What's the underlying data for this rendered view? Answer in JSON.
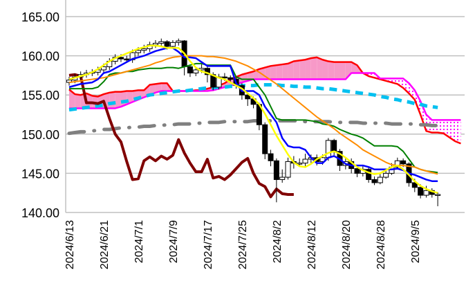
{
  "chart_data": {
    "type": "candlestick-ichimoku",
    "ylim": [
      140,
      165
    ],
    "grid": true,
    "y_ticks": [
      "165.00",
      "160.00",
      "155.00",
      "150.00",
      "145.00",
      "140.00"
    ],
    "y_tick_values": [
      165,
      160,
      155,
      150,
      145,
      140
    ],
    "x_tick_labels": [
      "2024/6/13",
      "2024/6/21",
      "2024/7/1",
      "2024/7/9",
      "2024/7/17",
      "2024/7/25",
      "2024/8/2",
      "2024/8/12",
      "2024/8/20",
      "2024/8/28",
      "2024/9/5"
    ],
    "x_tick_every_n_days": 6,
    "colors": {
      "up_candle": "#ffffff",
      "down_candle": "#000000",
      "yellow": "#ffff00",
      "blue": "#0000ff",
      "green": "#008000",
      "orange": "#ff8c00",
      "red": "#ff0000",
      "magenta": "#ff00ff",
      "cyan": "#00c0f0",
      "grey": "#808080",
      "darkred": "#800000",
      "cloud_up": "#f799c8",
      "cloud_down": "#ff00ff"
    },
    "candles": [
      [
        156.6,
        157.3,
        156.2,
        156.9
      ],
      [
        156.9,
        157.7,
        156.5,
        157.3
      ],
      [
        157.3,
        158.0,
        156.9,
        157.6
      ],
      [
        157.6,
        158.2,
        157.2,
        157.8
      ],
      [
        157.8,
        158.3,
        157.4,
        157.9
      ],
      [
        157.9,
        158.6,
        157.5,
        158.2
      ],
      [
        158.2,
        159.0,
        157.8,
        158.6
      ],
      [
        158.6,
        159.7,
        158.2,
        159.3
      ],
      [
        159.3,
        160.2,
        158.9,
        159.8
      ],
      [
        159.8,
        160.2,
        159.2,
        159.6
      ],
      [
        159.6,
        160.0,
        159.1,
        159.5
      ],
      [
        159.5,
        160.8,
        159.1,
        160.4
      ],
      [
        160.4,
        161.1,
        160.0,
        160.7
      ],
      [
        160.7,
        161.4,
        160.3,
        160.9
      ],
      [
        160.9,
        161.8,
        160.5,
        161.4
      ],
      [
        161.4,
        162.0,
        161.0,
        161.6
      ],
      [
        161.6,
        162.2,
        161.2,
        161.8
      ],
      [
        161.8,
        162.0,
        160.8,
        161.2
      ],
      [
        161.2,
        162.0,
        160.9,
        161.7
      ],
      [
        161.7,
        162.2,
        161.3,
        161.9
      ],
      [
        161.9,
        162.0,
        157.5,
        158.6
      ],
      [
        158.6,
        158.9,
        157.3,
        157.8
      ],
      [
        157.8,
        158.6,
        157.4,
        158.2
      ],
      [
        158.2,
        158.9,
        157.8,
        158.4
      ],
      [
        158.4,
        158.8,
        156.6,
        157.6
      ],
      [
        157.6,
        157.9,
        155.6,
        156.0
      ],
      [
        156.0,
        157.7,
        155.7,
        157.3
      ],
      [
        157.3,
        157.8,
        156.8,
        157.2
      ],
      [
        157.2,
        157.5,
        156.5,
        157.0
      ],
      [
        157.0,
        157.3,
        155.8,
        156.2
      ],
      [
        156.2,
        156.5,
        154.4,
        155.0
      ],
      [
        155.0,
        155.3,
        153.6,
        154.5
      ],
      [
        154.5,
        154.8,
        153.3,
        153.8
      ],
      [
        153.8,
        154.0,
        150.5,
        151.2
      ],
      [
        151.2,
        151.5,
        146.8,
        147.5
      ],
      [
        147.5,
        148.0,
        145.9,
        146.6
      ],
      [
        146.6,
        146.9,
        141.3,
        144.2
      ],
      [
        144.2,
        145.5,
        143.8,
        144.5
      ],
      [
        144.5,
        147.0,
        144.2,
        146.5
      ],
      [
        146.5,
        147.2,
        145.6,
        146.3
      ],
      [
        146.3,
        146.9,
        145.8,
        146.3
      ],
      [
        146.3,
        147.5,
        145.9,
        146.8
      ],
      [
        146.8,
        147.4,
        146.3,
        147.0
      ],
      [
        147.0,
        147.4,
        146.0,
        146.5
      ],
      [
        146.5,
        147.4,
        146.1,
        147.0
      ],
      [
        147.0,
        149.5,
        146.6,
        149.2
      ],
      [
        149.2,
        149.4,
        147.3,
        147.8
      ],
      [
        147.8,
        148.1,
        145.3,
        146.0
      ],
      [
        146.0,
        147.0,
        145.5,
        146.5
      ],
      [
        146.5,
        146.9,
        145.0,
        145.6
      ],
      [
        145.6,
        146.0,
        144.5,
        145.0
      ],
      [
        145.0,
        145.9,
        144.6,
        145.5
      ],
      [
        145.5,
        145.8,
        143.8,
        144.2
      ],
      [
        144.2,
        144.6,
        143.5,
        143.8
      ],
      [
        143.8,
        144.9,
        143.6,
        144.5
      ],
      [
        144.5,
        145.6,
        144.3,
        145.0
      ],
      [
        145.0,
        146.3,
        144.8,
        145.8
      ],
      [
        145.8,
        147.0,
        145.5,
        146.6
      ],
      [
        146.6,
        146.9,
        145.8,
        146.2
      ],
      [
        146.2,
        146.4,
        143.3,
        143.8
      ],
      [
        143.8,
        144.3,
        142.6,
        143.2
      ],
      [
        143.2,
        143.6,
        141.8,
        142.2
      ],
      [
        142.2,
        143.4,
        141.9,
        142.8
      ],
      [
        142.8,
        143.1,
        141.9,
        142.3
      ],
      [
        142.3,
        142.6,
        140.8,
        142.3
      ]
    ],
    "lines": {
      "yellow": [
        157.0,
        157.2,
        157.4,
        157.6,
        157.9,
        158.3,
        158.8,
        159.3,
        159.7,
        160.0,
        160.3,
        160.6,
        160.9,
        161.1,
        161.3,
        161.3,
        161.2,
        161.0,
        161.0,
        161.0,
        160.3,
        159.3,
        158.5,
        158.0,
        157.8,
        157.5,
        157.2,
        157.0,
        156.6,
        156.2,
        155.8,
        155.2,
        154.6,
        153.8,
        152.6,
        151.2,
        149.8,
        148.6,
        147.4,
        146.4,
        145.9,
        145.8,
        146.2,
        146.8,
        147.2,
        147.6,
        147.8,
        147.5,
        147.0,
        146.4,
        145.8,
        145.4,
        145.1,
        144.9,
        145.0,
        145.4,
        145.8,
        146.0,
        145.5,
        144.8,
        144.0,
        143.4,
        143.0,
        142.7,
        142.5
      ],
      "blue": [
        156.0,
        156.2,
        156.4,
        156.5,
        156.6,
        157.0,
        157.8,
        158.0,
        158.4,
        158.8,
        159.2,
        159.6,
        159.8,
        160.0,
        160.3,
        160.6,
        160.8,
        161.0,
        161.0,
        160.5,
        159.8,
        159.8,
        159.7,
        159.2,
        158.7,
        158.7,
        158.7,
        158.7,
        158.7,
        156.5,
        155.5,
        155.5,
        155.5,
        155.0,
        153.5,
        152.5,
        151.5,
        149.5,
        148.5,
        148.3,
        148.3,
        148.0,
        147.0,
        146.3,
        146.3,
        147.0,
        147.2,
        146.8,
        146.2,
        146.0,
        146.0,
        146.0,
        145.8,
        145.5,
        145.5,
        145.5,
        145.5,
        145.6,
        145.4,
        145.0,
        144.8,
        144.5,
        144.2,
        144.0,
        144.0
      ],
      "green": [
        155.8,
        155.8,
        155.8,
        155.8,
        155.8,
        156.0,
        156.7,
        157.6,
        157.8,
        157.8,
        158.0,
        158.0,
        158.2,
        158.3,
        158.4,
        158.4,
        158.4,
        158.5,
        158.5,
        158.4,
        158.6,
        158.8,
        159.0,
        159.0,
        158.8,
        158.8,
        158.8,
        158.8,
        158.8,
        157.3,
        157.0,
        157.0,
        157.0,
        156.0,
        155.0,
        153.5,
        152.0,
        151.8,
        151.8,
        151.8,
        151.8,
        151.8,
        151.7,
        151.6,
        151.3,
        151.2,
        151.0,
        150.6,
        150.3,
        150.0,
        149.8,
        149.5,
        149.0,
        148.5,
        148.5,
        148.5,
        148.5,
        148.4,
        147.8,
        146.8,
        145.8,
        145.5,
        145.3,
        145.2,
        145.1
      ],
      "orange": [
        156.6,
        156.7,
        156.8,
        156.9,
        157.0,
        157.1,
        157.2,
        157.4,
        157.6,
        157.8,
        158.0,
        158.2,
        158.4,
        158.6,
        158.8,
        159.1,
        159.3,
        159.6,
        159.8,
        159.9,
        160.0,
        160.0,
        160.0,
        160.0,
        159.9,
        159.9,
        159.8,
        159.7,
        159.5,
        159.3,
        159.0,
        158.7,
        158.3,
        157.9,
        157.4,
        156.9,
        156.4,
        155.8,
        155.2,
        154.6,
        154.0,
        153.4,
        152.8,
        152.2,
        151.7,
        151.2,
        150.7,
        150.1,
        149.6,
        149.1,
        148.6,
        148.0,
        147.6,
        147.2,
        146.8,
        146.4,
        146.1,
        146.0,
        146.0,
        145.9,
        145.8,
        145.5,
        145.3,
        145.1,
        144.9
      ],
      "red": [
        155.7,
        155.1,
        155.0,
        155.2,
        154.9,
        154.8,
        155.1,
        155.3,
        155.4,
        155.4,
        155.5,
        155.5,
        155.6,
        155.6,
        156.3,
        156.4,
        156.5,
        156.5,
        155.5,
        155.5,
        155.5,
        155.5,
        155.6,
        155.6,
        155.8,
        156.0,
        156.2,
        156.5,
        157.0,
        157.3,
        157.6,
        157.8,
        158.0,
        158.3,
        158.5,
        158.7,
        158.8,
        158.9,
        159.0,
        159.3,
        159.4,
        159.5,
        159.7,
        159.8,
        159.5,
        159.3,
        159.2,
        159.2,
        159.2,
        159.2,
        158.8,
        157.8,
        157.4,
        157.2,
        157.0,
        156.8,
        156.6,
        156.4,
        155.9,
        155.2,
        154.4,
        152.5,
        150.4,
        150.2,
        150.2,
        150.1,
        149.6,
        149.1,
        148.8
      ],
      "magenta": [
        153.3,
        153.3,
        153.3,
        153.3,
        153.3,
        153.3,
        153.3,
        153.3,
        153.3,
        153.5,
        153.8,
        154.1,
        154.4,
        154.7,
        155.0,
        155.3,
        155.5,
        155.5,
        155.5,
        155.5,
        155.5,
        155.5,
        155.5,
        155.5,
        155.5,
        155.6,
        155.8,
        156.0,
        156.2,
        156.4,
        156.6,
        156.8,
        157.0,
        157.0,
        157.0,
        157.0,
        157.0,
        157.0,
        157.0,
        157.0,
        157.0,
        157.0,
        157.0,
        157.0,
        157.0,
        157.0,
        157.0,
        157.0,
        157.0,
        157.8,
        157.8,
        157.8,
        157.8,
        157.8,
        157.1,
        157.1,
        157.1,
        157.1,
        157.1,
        156.5,
        155.6,
        154.2,
        152.5,
        151.8,
        151.8,
        151.8,
        151.8,
        151.8,
        151.8
      ],
      "cyan": [
        153.1,
        153.2,
        153.3,
        153.4,
        153.5,
        153.6,
        153.7,
        153.9,
        154.0,
        154.1,
        154.2,
        154.4,
        154.6,
        154.8,
        155.0,
        155.1,
        155.2,
        155.3,
        155.4,
        155.5,
        155.5,
        155.6,
        155.7,
        155.8,
        155.9,
        155.9,
        156.0,
        156.0,
        156.1,
        156.1,
        156.2,
        156.2,
        156.2,
        156.3,
        156.3,
        156.3,
        156.3,
        156.2,
        156.2,
        156.1,
        156.1,
        156.0,
        156.0,
        155.9,
        155.8,
        155.8,
        155.7,
        155.6,
        155.5,
        155.4,
        155.3,
        155.2,
        155.1,
        155.0,
        154.8,
        154.7,
        154.5,
        154.4,
        154.2,
        154.1,
        153.9,
        153.8,
        153.6,
        153.5,
        153.4
      ],
      "grey": [
        150.1,
        150.2,
        150.3,
        150.3,
        150.4,
        150.5,
        150.6,
        150.6,
        150.7,
        150.8,
        150.8,
        150.9,
        150.9,
        151.0,
        151.0,
        151.1,
        151.1,
        151.2,
        151.2,
        151.3,
        151.3,
        151.3,
        151.4,
        151.4,
        151.5,
        151.5,
        151.5,
        151.6,
        151.6,
        151.6,
        151.6,
        151.6,
        151.7,
        151.7,
        151.7,
        151.7,
        151.7,
        151.7,
        151.7,
        151.7,
        151.7,
        151.6,
        151.6,
        151.6,
        151.6,
        151.6,
        151.5,
        151.5,
        151.5,
        151.5,
        151.5,
        151.4,
        151.4,
        151.4,
        151.4,
        151.4,
        151.3,
        151.3,
        151.3,
        151.3,
        151.3,
        151.2,
        151.2,
        151.1,
        151.1
      ],
      "darkred": [
        157.5,
        157.6,
        157.4,
        154.0,
        154.0,
        153.9,
        154.2,
        152.0,
        150.0,
        149.0,
        146.5,
        144.2,
        144.3,
        146.6,
        147.1,
        146.6,
        147.2,
        146.8,
        147.3,
        149.3,
        147.6,
        146.3,
        145.2,
        145.2,
        146.8,
        144.4,
        144.6,
        144.2,
        144.8,
        145.6,
        146.4,
        146.9,
        145.0,
        143.7,
        143.3,
        142.0,
        143.0,
        142.4,
        142.3,
        142.3
      ]
    }
  }
}
